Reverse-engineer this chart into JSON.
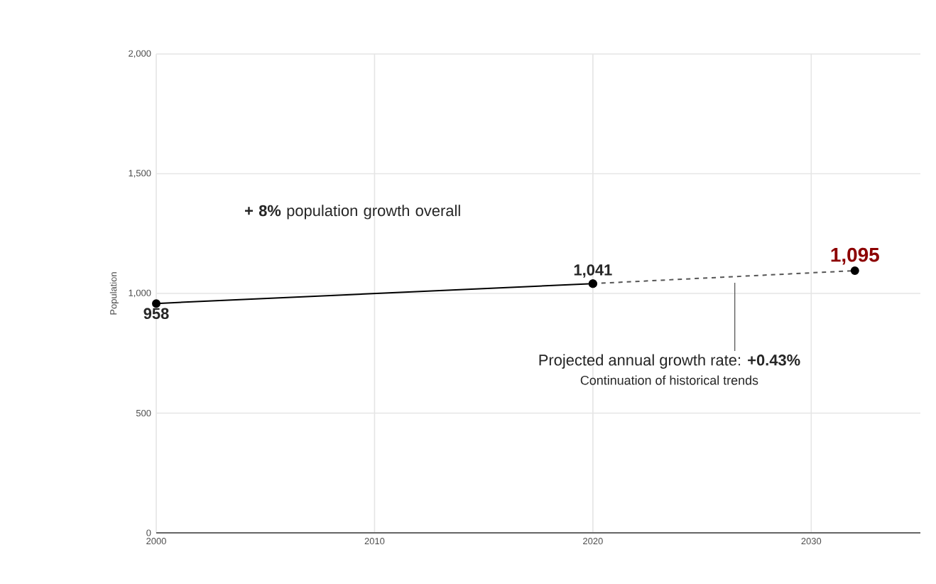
{
  "chart_data": {
    "type": "line",
    "ylabel": "Population",
    "xlim": [
      2000,
      2035
    ],
    "xticks": [
      2000,
      2010,
      2020,
      2030
    ],
    "ylim": [
      0,
      2000
    ],
    "yticks": [
      0,
      500,
      {
        "value": 1000,
        "label": "1,000"
      },
      {
        "value": 1500,
        "label": "1,500"
      },
      {
        "value": 2000,
        "label": "2,000"
      }
    ],
    "grid": true,
    "marker": "circle",
    "series": [
      {
        "color": "#000000",
        "line_style": "solid",
        "x": [
          2000,
          2020
        ],
        "values": [
          958,
          1041
        ],
        "value_labels": [
          "958",
          "1,041"
        ]
      },
      {
        "color": "#555555",
        "line_style": "dashed",
        "x": [
          2020,
          2032
        ],
        "values": [
          1041,
          1095
        ],
        "value_labels": [
          null,
          "1,095"
        ]
      }
    ],
    "annotations": [
      "**+ 8%** population growth overall",
      {
        "text": "Projected annual growth rate: **+0.43%**",
        "x": 2026.5,
        "y": 1068
      },
      "Continuation of historical trends"
    ]
  }
}
